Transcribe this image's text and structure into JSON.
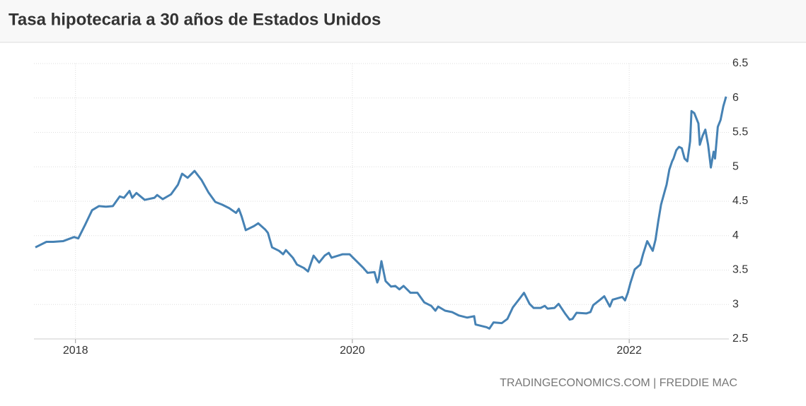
{
  "chart_data": {
    "type": "line",
    "title": "Tasa hipotecaria a 30 años de Estados Unidos",
    "source": "TRADINGECONOMICS.COM | FREDDIE MAC",
    "x": [
      2017.71,
      2017.79,
      2017.84,
      2017.91,
      2017.99,
      2018.02,
      2018.07,
      2018.12,
      2018.17,
      2018.22,
      2018.27,
      2018.32,
      2018.35,
      2018.39,
      2018.41,
      2018.44,
      2018.5,
      2018.57,
      2018.59,
      2018.63,
      2018.69,
      2018.74,
      2018.77,
      2018.81,
      2018.86,
      2018.91,
      2018.96,
      2019.01,
      2019.06,
      2019.11,
      2019.16,
      2019.18,
      2019.2,
      2019.23,
      2019.29,
      2019.32,
      2019.37,
      2019.39,
      2019.42,
      2019.47,
      2019.5,
      2019.52,
      2019.57,
      2019.6,
      2019.65,
      2019.68,
      2019.72,
      2019.76,
      2019.8,
      2019.83,
      2019.85,
      2019.93,
      2019.98,
      2020.03,
      2020.08,
      2020.11,
      2020.16,
      2020.18,
      2020.19,
      2020.21,
      2020.24,
      2020.28,
      2020.31,
      2020.34,
      2020.37,
      2020.42,
      2020.47,
      2020.52,
      2020.57,
      2020.6,
      2020.62,
      2020.67,
      2020.72,
      2020.77,
      2020.83,
      2020.88,
      2020.89,
      2020.97,
      2020.99,
      2021.02,
      2021.08,
      2021.12,
      2021.16,
      2021.21,
      2021.24,
      2021.28,
      2021.31,
      2021.36,
      2021.39,
      2021.41,
      2021.46,
      2021.49,
      2021.54,
      2021.57,
      2021.59,
      2021.62,
      2021.69,
      2021.72,
      2021.74,
      2021.79,
      2021.82,
      2021.86,
      2021.88,
      2021.95,
      2021.97,
      2021.99,
      2022.01,
      2022.04,
      2022.08,
      2022.1,
      2022.13,
      2022.17,
      2022.19,
      2022.21,
      2022.23,
      2022.26,
      2022.27,
      2022.29,
      2022.31,
      2022.32,
      2022.34,
      2022.36,
      2022.38,
      2022.4,
      2022.42,
      2022.44,
      2022.45,
      2022.47,
      2022.5,
      2022.51,
      2022.53,
      2022.55,
      2022.57,
      2022.59,
      2022.61,
      2022.62,
      2022.64,
      2022.66,
      2022.68,
      2022.7
    ],
    "series": [
      {
        "color": "#4682b4",
        "values": [
          3.83,
          3.91,
          3.91,
          3.92,
          3.98,
          3.96,
          4.16,
          4.37,
          4.43,
          4.42,
          4.43,
          4.57,
          4.55,
          4.65,
          4.55,
          4.62,
          4.52,
          4.55,
          4.59,
          4.53,
          4.6,
          4.74,
          4.9,
          4.84,
          4.94,
          4.81,
          4.63,
          4.49,
          4.45,
          4.4,
          4.33,
          4.39,
          4.28,
          4.08,
          4.14,
          4.18,
          4.09,
          4.04,
          3.83,
          3.78,
          3.73,
          3.79,
          3.68,
          3.58,
          3.53,
          3.48,
          3.71,
          3.61,
          3.71,
          3.75,
          3.68,
          3.73,
          3.73,
          3.63,
          3.53,
          3.46,
          3.47,
          3.32,
          3.37,
          3.63,
          3.34,
          3.26,
          3.27,
          3.22,
          3.27,
          3.17,
          3.17,
          3.03,
          2.98,
          2.91,
          2.97,
          2.91,
          2.89,
          2.84,
          2.81,
          2.83,
          2.71,
          2.67,
          2.65,
          2.74,
          2.73,
          2.79,
          2.96,
          3.09,
          3.17,
          3.01,
          2.95,
          2.95,
          2.98,
          2.94,
          2.95,
          3.01,
          2.86,
          2.78,
          2.79,
          2.88,
          2.87,
          2.89,
          2.99,
          3.07,
          3.12,
          2.97,
          3.07,
          3.11,
          3.06,
          3.17,
          3.32,
          3.51,
          3.58,
          3.73,
          3.92,
          3.78,
          3.94,
          4.21,
          4.45,
          4.67,
          4.74,
          4.96,
          5.08,
          5.12,
          5.24,
          5.29,
          5.27,
          5.12,
          5.08,
          5.37,
          5.81,
          5.78,
          5.63,
          5.32,
          5.45,
          5.54,
          5.32,
          4.99,
          5.22,
          5.12,
          5.58,
          5.68,
          5.88,
          6.02
        ]
      }
    ],
    "xlim": [
      2017.7,
      2022.72
    ],
    "xticks": [
      2018,
      2020,
      2022
    ],
    "ylim": [
      2.5,
      6.5
    ],
    "yticks": [
      2.5,
      3,
      3.5,
      4,
      4.5,
      5,
      5.5,
      6,
      6.5
    ],
    "grid": true
  }
}
